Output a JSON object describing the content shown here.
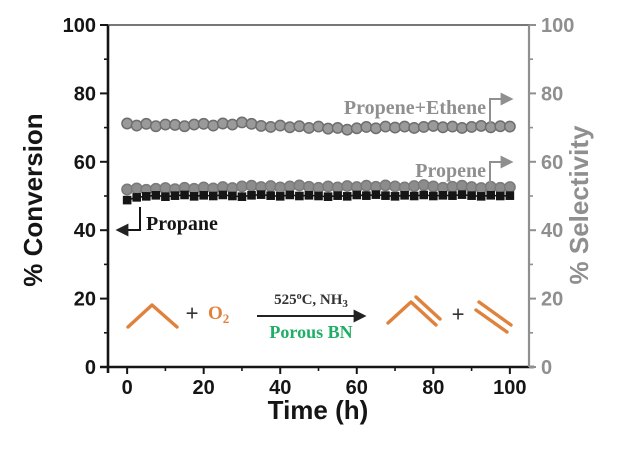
{
  "chart_data": {
    "type": "scatter",
    "title": "",
    "xlabel": "Time (h)",
    "ylabel_left": "% Conversion",
    "ylabel_right": "% Selectivity",
    "xlim": [
      -5,
      105
    ],
    "ylim": [
      0,
      100
    ],
    "xticks": [
      0,
      20,
      40,
      60,
      80,
      100
    ],
    "yticks_left": [
      0,
      20,
      40,
      60,
      80,
      100
    ],
    "yticks_right": [
      0,
      20,
      40,
      60,
      80,
      100
    ],
    "minor_xticks": [
      10,
      30,
      50,
      70,
      90
    ],
    "minor_yticks": [
      10,
      30,
      50,
      70,
      90
    ],
    "grid": false,
    "axis_colors": {
      "left": "#151515",
      "right": "#8f8f8f"
    },
    "x": [
      0,
      2.5,
      5,
      7.5,
      10,
      12.5,
      15,
      17.5,
      20,
      22.5,
      25,
      27.5,
      30,
      32.5,
      35,
      37.5,
      40,
      42.5,
      45,
      47.5,
      50,
      52.5,
      55,
      57.5,
      60,
      62.5,
      65,
      67.5,
      70,
      72.5,
      75,
      77.5,
      80,
      82.5,
      85,
      87.5,
      90,
      92.5,
      95,
      97.5,
      100
    ],
    "series": [
      {
        "name": "Propene+Ethene",
        "axis": "right",
        "marker": "circle",
        "color": "#9a9a9a",
        "edge_color": "#6e6e6e",
        "line_color": "#7e7e7e",
        "values": [
          71.2,
          70.6,
          71.1,
          70.4,
          70.9,
          70.8,
          70.4,
          70.9,
          71.1,
          70.6,
          71.2,
          70.9,
          71.5,
          71.1,
          70.5,
          70.2,
          70.6,
          70.1,
          70.4,
          69.9,
          70.3,
          69.7,
          69.9,
          69.4,
          69.8,
          70.2,
          69.8,
          70.3,
          70.0,
          70.3,
          69.9,
          70.2,
          70.5,
          70.1,
          70.3,
          69.9,
          70.2,
          70.5,
          70.1,
          70.4,
          70.3
        ]
      },
      {
        "name": "Propene",
        "axis": "right",
        "marker": "circle",
        "color": "#8c8c8c",
        "edge_color": "#7a7a7a",
        "line_color": "#8c8c8c",
        "values": [
          51.9,
          52.2,
          51.8,
          52.1,
          52.3,
          52.0,
          52.4,
          52.1,
          52.5,
          52.2,
          52.6,
          52.3,
          52.8,
          53.0,
          52.6,
          52.9,
          52.5,
          52.8,
          53.1,
          52.7,
          52.4,
          52.8,
          52.5,
          52.9,
          52.6,
          53.0,
          52.7,
          53.1,
          52.8,
          52.5,
          52.9,
          53.2,
          52.8,
          52.4,
          52.7,
          53.0,
          52.6,
          52.3,
          52.7,
          52.4,
          52.6
        ]
      },
      {
        "name": "Propane",
        "axis": "left",
        "marker": "square",
        "color": "#151515",
        "edge_color": "#151515",
        "line_color": "#151515",
        "values": [
          48.8,
          49.6,
          49.9,
          50.2,
          49.8,
          50.1,
          50.3,
          49.9,
          50.2,
          50.0,
          50.3,
          50.0,
          49.8,
          50.2,
          50.4,
          50.1,
          49.9,
          50.3,
          50.0,
          50.2,
          50.0,
          49.8,
          50.1,
          49.9,
          50.3,
          50.1,
          50.4,
          50.1,
          49.9,
          50.2,
          50.0,
          50.3,
          50.0,
          50.2,
          50.1,
          50.4,
          50.1,
          49.9,
          50.2,
          50.0,
          50.1
        ]
      }
    ],
    "legend_position": "inline-annotations"
  },
  "annotations": {
    "reaction": {
      "reactant_plus": "+",
      "o2_base": "O",
      "o2_sub": "2",
      "cond_t1": "525",
      "cond_sup": "o",
      "cond_t2": "C, NH",
      "cond_sub": "3",
      "catalyst": "Porous BN",
      "product_plus": "+"
    },
    "colors": {
      "orange": "#e0813c",
      "green": "#1fae66",
      "gray": "#8f8f8f",
      "black": "#151515"
    }
  }
}
